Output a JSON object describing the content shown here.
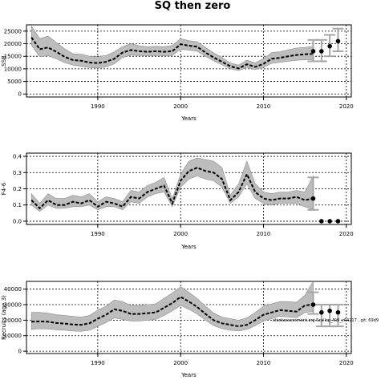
{
  "title": "SQ then zero",
  "watermark": "stockassessment.org  Scallop_NW_v04217 , git: 69d9",
  "chart_data": [
    {
      "type": "line",
      "ylabel": "SSB",
      "xlabel": "Years",
      "xlim": [
        1981.4,
        2020.6
      ],
      "ylim": [
        -1200,
        27500
      ],
      "xticks": [
        1990,
        2000,
        2010,
        2020
      ],
      "yticks": [
        0,
        5000,
        10000,
        15000,
        20000,
        25000
      ],
      "grid": true,
      "series": [
        {
          "x": [
            1982,
            1983,
            1984,
            1985,
            1986,
            1987,
            1988,
            1989,
            1990,
            1991,
            1992,
            1993,
            1994,
            1995,
            1996,
            1997,
            1998,
            1999,
            2000,
            2001,
            2002,
            2003,
            2004,
            2005,
            2006,
            2007,
            2008,
            2009,
            2010,
            2011,
            2012,
            2013,
            2014,
            2015,
            2016
          ],
          "y": [
            22500,
            17800,
            18500,
            16800,
            14800,
            13500,
            13200,
            12500,
            12300,
            12800,
            14000,
            16500,
            17500,
            17000,
            16800,
            17000,
            16800,
            17000,
            19800,
            19200,
            18800,
            16500,
            14500,
            12800,
            11000,
            10200,
            11800,
            10800,
            12000,
            14000,
            14400,
            15000,
            15500,
            15800,
            16000
          ],
          "lower": [
            19500,
            14800,
            15200,
            14000,
            12500,
            11500,
            11000,
            10500,
            10300,
            10800,
            12000,
            14500,
            15500,
            15300,
            15200,
            15300,
            15200,
            15300,
            17800,
            17500,
            17000,
            15000,
            13200,
            11600,
            10000,
            9300,
            10600,
            9700,
            10600,
            12200,
            12600,
            13000,
            13400,
            13600,
            13600
          ],
          "upper": [
            27000,
            22000,
            23000,
            20500,
            18000,
            16000,
            15800,
            15000,
            14800,
            15300,
            16800,
            18800,
            20000,
            19200,
            18800,
            19000,
            18800,
            19300,
            22000,
            21200,
            20800,
            18500,
            16300,
            14500,
            12300,
            11500,
            13500,
            12400,
            14000,
            16500,
            16800,
            17600,
            18300,
            18500,
            19000
          ]
        }
      ],
      "forecast": [
        {
          "x": 2016,
          "y": 17000,
          "lower": 13000,
          "upper": 21500
        },
        {
          "x": 2017,
          "y": 17000,
          "lower": 13000,
          "upper": 21500
        },
        {
          "x": 2018,
          "y": 19000,
          "lower": 15000,
          "upper": 23500
        },
        {
          "x": 2019,
          "y": 21000,
          "lower": 17000,
          "upper": 26000
        }
      ]
    },
    {
      "type": "line",
      "ylabel": "F4-6",
      "xlabel": "Years",
      "xlim": [
        1981.4,
        2020.6
      ],
      "ylim": [
        -0.02,
        0.42
      ],
      "xticks": [
        1990,
        2000,
        2010,
        2020
      ],
      "yticks": [
        0.0,
        0.1,
        0.2,
        0.3,
        0.4
      ],
      "grid": true,
      "series": [
        {
          "x": [
            1982,
            1983,
            1984,
            1985,
            1986,
            1987,
            1988,
            1989,
            1990,
            1991,
            1992,
            1993,
            1994,
            1995,
            1996,
            1997,
            1998,
            1999,
            2000,
            2001,
            2002,
            2003,
            2004,
            2005,
            2006,
            2007,
            2008,
            2009,
            2010,
            2011,
            2012,
            2013,
            2014,
            2015,
            2016
          ],
          "y": [
            0.13,
            0.08,
            0.13,
            0.1,
            0.1,
            0.12,
            0.11,
            0.13,
            0.09,
            0.12,
            0.11,
            0.09,
            0.15,
            0.14,
            0.18,
            0.2,
            0.22,
            0.11,
            0.25,
            0.31,
            0.33,
            0.31,
            0.3,
            0.26,
            0.13,
            0.18,
            0.29,
            0.18,
            0.14,
            0.13,
            0.14,
            0.14,
            0.15,
            0.13,
            0.14
          ],
          "lower": [
            0.1,
            0.06,
            0.1,
            0.08,
            0.08,
            0.09,
            0.09,
            0.1,
            0.07,
            0.09,
            0.09,
            0.07,
            0.12,
            0.11,
            0.15,
            0.17,
            0.18,
            0.09,
            0.21,
            0.26,
            0.28,
            0.26,
            0.25,
            0.21,
            0.11,
            0.15,
            0.23,
            0.14,
            0.11,
            0.1,
            0.11,
            0.11,
            0.11,
            0.09,
            0.07
          ],
          "upper": [
            0.17,
            0.11,
            0.17,
            0.14,
            0.14,
            0.16,
            0.15,
            0.17,
            0.12,
            0.15,
            0.14,
            0.12,
            0.19,
            0.18,
            0.22,
            0.24,
            0.27,
            0.14,
            0.29,
            0.37,
            0.39,
            0.38,
            0.37,
            0.33,
            0.16,
            0.23,
            0.37,
            0.23,
            0.18,
            0.17,
            0.18,
            0.18,
            0.19,
            0.18,
            0.28
          ]
        }
      ],
      "forecast": [
        {
          "x": 2016,
          "y": 0.14,
          "lower": 0.07,
          "upper": 0.27
        },
        {
          "x": 2017,
          "y": 0.0,
          "lower": 0.0,
          "upper": 0.0
        },
        {
          "x": 2018,
          "y": 0.0,
          "lower": 0.0,
          "upper": 0.0
        },
        {
          "x": 2019,
          "y": 0.0,
          "lower": 0.0,
          "upper": 0.0
        }
      ]
    },
    {
      "type": "line",
      "ylabel": "Recruits (age 3)",
      "xlabel": "Years",
      "xlim": [
        1981.4,
        2020.6
      ],
      "ylim": [
        -1500,
        45000
      ],
      "xticks": [
        1990,
        2000,
        2010,
        2020
      ],
      "yticks": [
        0,
        10000,
        20000,
        30000,
        40000
      ],
      "grid": true,
      "series": [
        {
          "x": [
            1982,
            1983,
            1984,
            1985,
            1986,
            1987,
            1988,
            1989,
            1990,
            1991,
            1992,
            1993,
            1994,
            1995,
            1996,
            1997,
            1998,
            1999,
            2000,
            2001,
            2002,
            2003,
            2004,
            2005,
            2006,
            2007,
            2008,
            2009,
            2010,
            2011,
            2012,
            2013,
            2014,
            2015,
            2016
          ],
          "y": [
            19000,
            19200,
            19000,
            18200,
            17800,
            17200,
            17000,
            18000,
            21000,
            23500,
            27000,
            26000,
            24000,
            24000,
            24500,
            25000,
            28000,
            31000,
            35000,
            32000,
            28500,
            24000,
            20000,
            18000,
            17000,
            16000,
            17000,
            20000,
            23500,
            25000,
            26500,
            26000,
            25500,
            29500,
            30000
          ],
          "lower": [
            14000,
            14500,
            14300,
            13800,
            13500,
            13000,
            12800,
            13500,
            16000,
            18500,
            21500,
            20500,
            19500,
            19500,
            20000,
            20500,
            23000,
            26000,
            29500,
            27000,
            24000,
            20000,
            16500,
            14500,
            13500,
            13000,
            14000,
            16500,
            19500,
            21000,
            22500,
            22000,
            21500,
            25000,
            25500
          ],
          "upper": [
            25000,
            25000,
            24500,
            23500,
            23000,
            22500,
            22000,
            23000,
            26500,
            29000,
            33000,
            32000,
            29500,
            29500,
            30000,
            30500,
            34000,
            37500,
            41500,
            38000,
            34000,
            29000,
            24500,
            22000,
            21000,
            20000,
            21500,
            25000,
            29000,
            30500,
            32000,
            32000,
            31500,
            36000,
            45000
          ]
        }
      ],
      "forecast": [
        {
          "x": 2016,
          "y": 30000,
          "lower": 24000,
          "upper": 38000
        },
        {
          "x": 2017,
          "y": 25000,
          "lower": 16000,
          "upper": 30000
        },
        {
          "x": 2018,
          "y": 26000,
          "lower": 16000,
          "upper": 30000
        },
        {
          "x": 2019,
          "y": 25000,
          "lower": 16000,
          "upper": 30000
        }
      ]
    }
  ],
  "colors": {
    "band": "#bdbdbd",
    "line": "#000000",
    "forecast_bar": "#a6a6a6",
    "grid": "#000000"
  }
}
